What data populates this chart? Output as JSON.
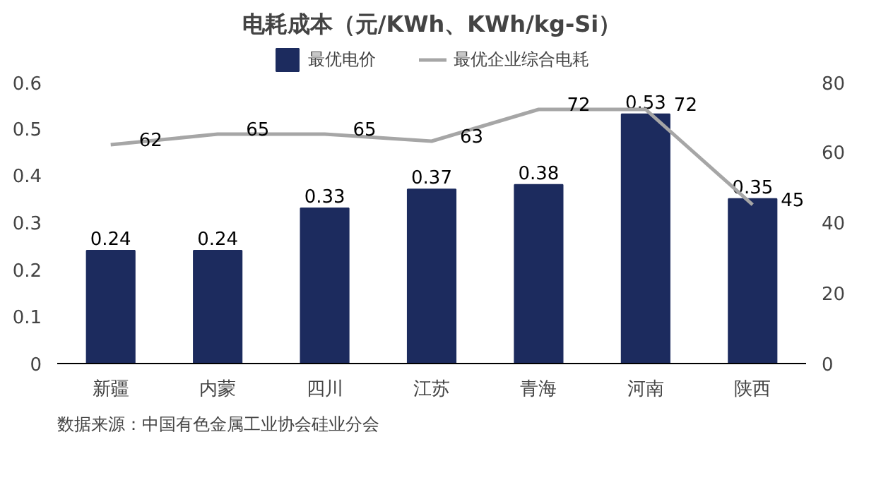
{
  "chart_data": {
    "type": "bar",
    "title": "电耗成本（元/KWh、KWh/kg-Si）",
    "categories": [
      "新疆",
      "内蒙",
      "四川",
      "江苏",
      "青海",
      "河南",
      "陕西"
    ],
    "series": [
      {
        "name": "最优电价",
        "color": "#1c2b5e",
        "values": [
          0.24,
          0.24,
          0.33,
          0.37,
          0.38,
          0.53,
          0.35
        ]
      },
      {
        "name": "最优企业综合电耗",
        "type": "line",
        "axis": "y2",
        "color": "#a6a6a6",
        "values": [
          62,
          65,
          65,
          63,
          72,
          72,
          45
        ]
      }
    ],
    "ylim": [
      0,
      0.6
    ],
    "yticks": [
      0,
      {
        "value": 0.1,
        "label": "0.1"
      },
      {
        "value": 0.2,
        "label": "0.2"
      },
      {
        "value": 0.3,
        "label": "0.3"
      },
      {
        "value": 0.4,
        "label": "0.4"
      },
      {
        "value": 0.5,
        "label": "0.5"
      },
      {
        "value": 0.6,
        "label": "0.6"
      }
    ],
    "y2lim": [
      0,
      80
    ],
    "y2ticks": [
      0,
      20,
      40,
      60,
      80
    ],
    "data_labels": true,
    "legend": "top",
    "grid": false,
    "annotations": [
      "数据来源：中国有色金属工业协会硅业分会"
    ]
  }
}
